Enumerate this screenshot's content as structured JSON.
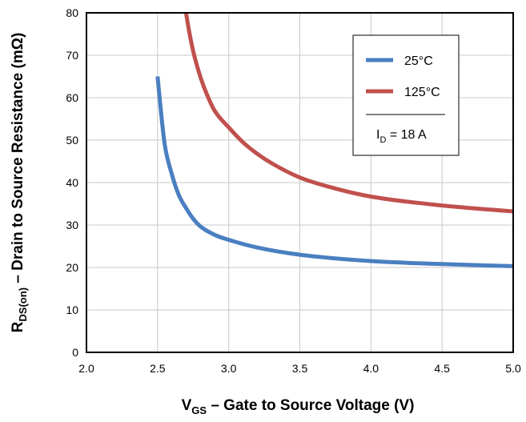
{
  "chart_data": {
    "type": "line",
    "xlabel": {
      "main": "V",
      "sub": "GS",
      "rest": " – Gate to Source Voltage (V)"
    },
    "ylabel": {
      "main": "R",
      "sub": "DS(on)",
      "rest": " – Drain to Source Resistance (mΩ)"
    },
    "xlim": [
      2.0,
      5.0
    ],
    "ylim": [
      0,
      80
    ],
    "xticks": [
      "2.0",
      "2.5",
      "3.0",
      "3.5",
      "4.0",
      "4.5",
      "5.0"
    ],
    "yticks": [
      "0",
      "10",
      "20",
      "30",
      "40",
      "50",
      "60",
      "70",
      "80"
    ],
    "grid": true,
    "legend_position": "top-right",
    "series": [
      {
        "name": "25°C",
        "color": "#4a7fc1",
        "x": [
          2.5,
          2.52,
          2.55,
          2.6,
          2.65,
          2.7,
          2.75,
          2.8,
          2.9,
          3.0,
          3.2,
          3.5,
          4.0,
          4.5,
          5.0
        ],
        "y": [
          65,
          58,
          49,
          42,
          37,
          34,
          31.5,
          29.7,
          27.7,
          26.5,
          24.7,
          23,
          21.5,
          20.8,
          20.3
        ]
      },
      {
        "name": "125°C",
        "color": "#c0504d",
        "x": [
          2.7,
          2.72,
          2.75,
          2.8,
          2.85,
          2.9,
          3.0,
          3.1,
          3.2,
          3.3,
          3.5,
          3.75,
          4.0,
          4.5,
          5.0
        ],
        "y": [
          80,
          76,
          71,
          65,
          60.5,
          57,
          53,
          49.5,
          46.8,
          44.6,
          41.2,
          38.6,
          36.7,
          34.6,
          33.2
        ]
      }
    ],
    "legend_note": {
      "main": "I",
      "sub": "D",
      "rest": " = 18 A"
    }
  }
}
